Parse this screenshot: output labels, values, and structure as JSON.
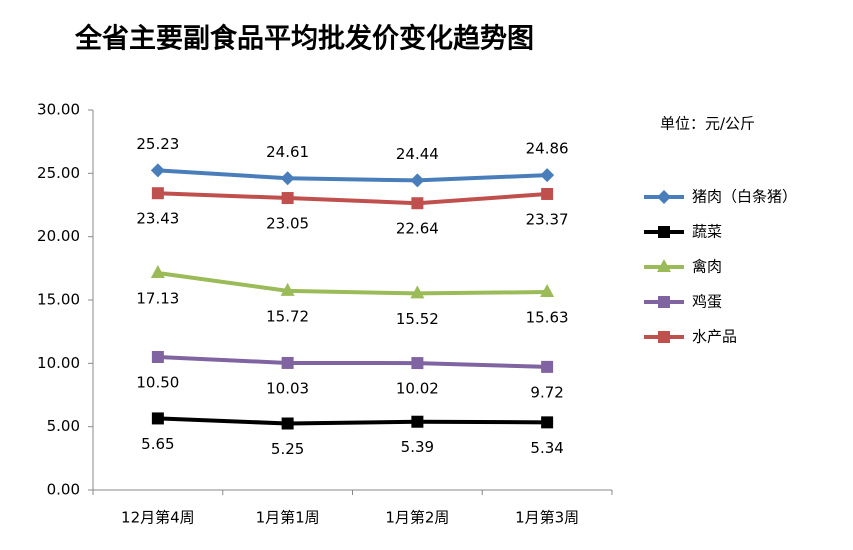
{
  "chart_data": {
    "type": "line",
    "title": "全省主要副食品平均批发价变化趋势图",
    "unit": "单位：元/公斤",
    "categories": [
      "12月第4周",
      "1月第1周",
      "1月第2周",
      "1月第3周"
    ],
    "ylim": [
      0,
      30
    ],
    "yticks": [
      {
        "value": 0,
        "label": "0.00"
      },
      {
        "value": 5,
        "label": "5.00"
      },
      {
        "value": 10,
        "label": "10.00"
      },
      {
        "value": 15,
        "label": "15.00"
      },
      {
        "value": 20,
        "label": "20.00"
      },
      {
        "value": 25,
        "label": "25.00"
      },
      {
        "value": 30,
        "label": "30.00"
      }
    ],
    "series": [
      {
        "name": "猪肉（白条猪）",
        "color": "#4a7ebb",
        "marker": "diamond",
        "label_position": "above",
        "values": [
          25.23,
          24.61,
          24.44,
          24.86
        ]
      },
      {
        "name": "蔬菜",
        "color": "#000000",
        "marker": "square",
        "label_position": "below",
        "values": [
          5.65,
          5.25,
          5.39,
          5.34
        ]
      },
      {
        "name": "禽肉",
        "color": "#9bbb59",
        "marker": "triangle",
        "label_position": "below",
        "values": [
          17.13,
          15.72,
          15.52,
          15.63
        ]
      },
      {
        "name": "鸡蛋",
        "color": "#8064a2",
        "marker": "square",
        "label_position": "below",
        "values": [
          10.5,
          10.03,
          10.02,
          9.72
        ],
        "value_labels": [
          "10.50",
          "10.03",
          "10.02",
          "9.72"
        ]
      },
      {
        "name": "水产品",
        "color": "#c0504d",
        "marker": "square",
        "label_position": "below",
        "values": [
          23.43,
          23.05,
          22.64,
          23.37
        ]
      }
    ]
  }
}
